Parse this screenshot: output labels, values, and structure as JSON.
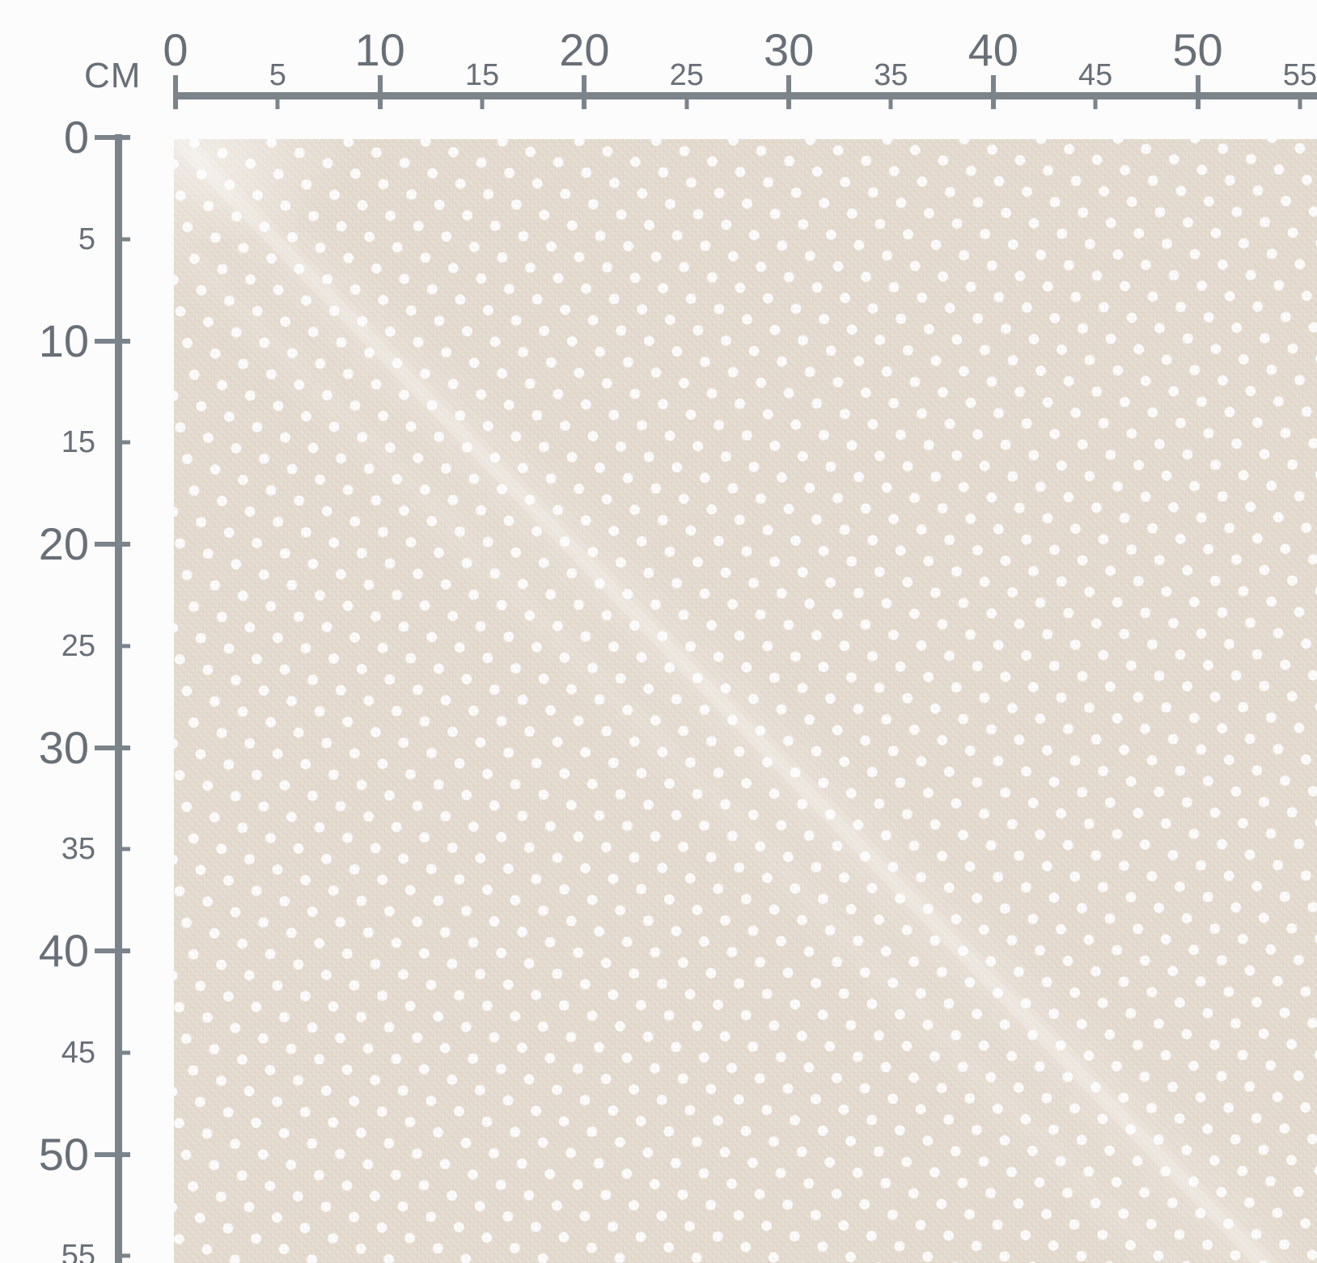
{
  "ruler": {
    "unit_label": "CM",
    "horizontal": {
      "ticks": [
        {
          "cm": 0,
          "label": "0",
          "major": true
        },
        {
          "cm": 5,
          "label": "5",
          "major": false
        },
        {
          "cm": 10,
          "label": "10",
          "major": true
        },
        {
          "cm": 15,
          "label": "15",
          "major": false
        },
        {
          "cm": 20,
          "label": "20",
          "major": true
        },
        {
          "cm": 25,
          "label": "25",
          "major": false
        },
        {
          "cm": 30,
          "label": "30",
          "major": true
        },
        {
          "cm": 35,
          "label": "35",
          "major": false
        },
        {
          "cm": 40,
          "label": "40",
          "major": true
        },
        {
          "cm": 45,
          "label": "45",
          "major": false
        },
        {
          "cm": 50,
          "label": "50",
          "major": true
        },
        {
          "cm": 55,
          "label": "55",
          "major": false
        }
      ]
    },
    "vertical": {
      "ticks": [
        {
          "cm": 0,
          "label": "0",
          "major": true
        },
        {
          "cm": 5,
          "label": "5",
          "major": false
        },
        {
          "cm": 10,
          "label": "10",
          "major": true
        },
        {
          "cm": 15,
          "label": "15",
          "major": false
        },
        {
          "cm": 20,
          "label": "20",
          "major": true
        },
        {
          "cm": 25,
          "label": "25",
          "major": false
        },
        {
          "cm": 30,
          "label": "30",
          "major": true
        },
        {
          "cm": 35,
          "label": "35",
          "major": false
        },
        {
          "cm": 40,
          "label": "40",
          "major": true
        },
        {
          "cm": 45,
          "label": "45",
          "major": false
        },
        {
          "cm": 50,
          "label": "50",
          "major": true
        },
        {
          "cm": 55,
          "label": "55",
          "major": false
        }
      ]
    }
  },
  "fabric": {
    "description": "beige fabric swatch with white polka dots"
  },
  "colors": {
    "background": "#fcfcfd",
    "ruler_line": "#7b838b",
    "ruler_text": "#686f77",
    "fabric_base": "#e6ddd2",
    "dot": "#fefefe",
    "sheen": "#ffffff"
  }
}
